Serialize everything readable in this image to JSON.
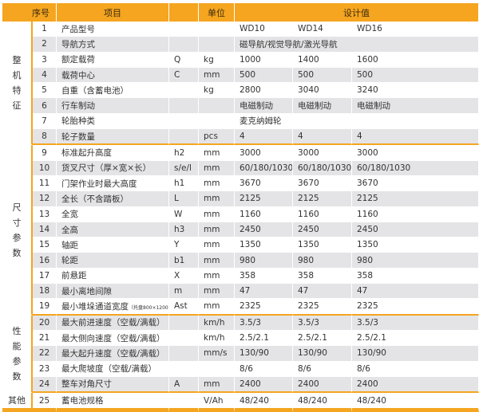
{
  "header": {
    "seq": "序号",
    "item": "项目",
    "unit": "单位",
    "design": "设计值"
  },
  "groups": [
    {
      "label": "整\n机\n特\n征",
      "rows": 8
    },
    {
      "label": "尺\n寸\n参\n数",
      "rows": 11
    },
    {
      "label": "性\n能\n参\n数",
      "rows": 5
    },
    {
      "label": "其他",
      "rows": 1
    }
  ],
  "rows": [
    {
      "seq": "1",
      "item": "产品型号",
      "sym": "",
      "unit": "",
      "v": [
        "WD10",
        "WD14",
        "WD16"
      ]
    },
    {
      "seq": "2",
      "item": "导航方式",
      "sym": "",
      "unit": "",
      "merged": "磁导航/视觉导航/激光导航"
    },
    {
      "seq": "3",
      "item": "额定载荷",
      "sym": "Q",
      "unit": "kg",
      "v": [
        "1000",
        "1400",
        "1600"
      ]
    },
    {
      "seq": "4",
      "item": "载荷中心",
      "sym": "C",
      "unit": "mm",
      "v": [
        "500",
        "500",
        "500"
      ]
    },
    {
      "seq": "5",
      "item": "自重（含蓄电池）",
      "sym": "",
      "unit": "kg",
      "v": [
        "2800",
        "3040",
        "3240"
      ]
    },
    {
      "seq": "6",
      "item": "行车制动",
      "sym": "",
      "unit": "",
      "v": [
        "电磁制动",
        "电磁制动",
        "电磁制动"
      ]
    },
    {
      "seq": "7",
      "item": "轮胎种类",
      "sym": "",
      "unit": "",
      "merged": "麦克纳姆轮"
    },
    {
      "seq": "8",
      "item": "轮子数量",
      "sym": "",
      "unit": "pcs",
      "v": [
        "4",
        "4",
        "4"
      ]
    },
    {
      "seq": "9",
      "item": "标准起升高度",
      "sym": "h2",
      "unit": "mm",
      "v": [
        "3000",
        "3000",
        "3000"
      ]
    },
    {
      "seq": "10",
      "item": "货叉尺寸（厚×宽×长）",
      "sym": "s/e/l",
      "unit": "mm",
      "v": [
        "60/180/1030",
        "60/180/1030",
        "60/180/1030"
      ]
    },
    {
      "seq": "11",
      "item": "门架作业时最大高度",
      "sym": "h1",
      "unit": "mm",
      "v": [
        "3670",
        "3670",
        "3670"
      ]
    },
    {
      "seq": "12",
      "item": "全长（不含踏板）",
      "sym": "L",
      "unit": "mm",
      "v": [
        "2125",
        "2125",
        "2125"
      ]
    },
    {
      "seq": "13",
      "item": "全宽",
      "sym": "W",
      "unit": "mm",
      "v": [
        "1160",
        "1160",
        "1160"
      ]
    },
    {
      "seq": "14",
      "item": "全高",
      "sym": "h3",
      "unit": "mm",
      "v": [
        "2450",
        "2450",
        "2450"
      ]
    },
    {
      "seq": "15",
      "item": "轴距",
      "sym": "Y",
      "unit": "mm",
      "v": [
        "1350",
        "1350",
        "1350"
      ]
    },
    {
      "seq": "16",
      "item": "轮距",
      "sym": "b1",
      "unit": "mm",
      "v": [
        "980",
        "980",
        "980"
      ]
    },
    {
      "seq": "17",
      "item": "前悬距",
      "sym": "X",
      "unit": "mm",
      "v": [
        "358",
        "358",
        "358"
      ]
    },
    {
      "seq": "18",
      "item": "最小离地间隙",
      "sym": "m",
      "unit": "mm",
      "v": [
        "47",
        "47",
        "47"
      ]
    },
    {
      "seq": "19",
      "item": "最小堆垛通道宽度",
      "note": "（托盘800×1200）",
      "sym": "Ast",
      "unit": "mm",
      "v": [
        "2325",
        "2325",
        "2325"
      ]
    },
    {
      "seq": "20",
      "item": "最大前进速度（空载/满载）",
      "sym": "",
      "unit": "km/h",
      "v": [
        "3.5/3",
        "3.5/3",
        "3.5/3"
      ]
    },
    {
      "seq": "21",
      "item": "最大侧向速度（空载/满载）",
      "sym": "",
      "unit": "km/h",
      "v": [
        "2.5/2.1",
        "2.5/2.1",
        "2.5/2.1"
      ]
    },
    {
      "seq": "22",
      "item": "最大起升速度（空载/满载）",
      "sym": "",
      "unit": "mm/s",
      "v": [
        "130/90",
        "130/90",
        "130/90"
      ]
    },
    {
      "seq": "23",
      "item": "最大爬坡度（空载/满载）",
      "sym": "",
      "unit": "",
      "v": [
        "8/6",
        "8/6",
        "8/6"
      ]
    },
    {
      "seq": "24",
      "item": "整车对角尺寸",
      "sym": "A",
      "unit": "mm",
      "v": [
        "2400",
        "2400",
        "2400"
      ]
    },
    {
      "seq": "25",
      "item": "蓄电池规格",
      "sym": "",
      "unit": "V/Ah",
      "v": [
        "48/240",
        "48/240",
        "48/240"
      ]
    }
  ],
  "colors": {
    "accent": "#F5A51F",
    "row_shade": "#E4E4E6"
  }
}
